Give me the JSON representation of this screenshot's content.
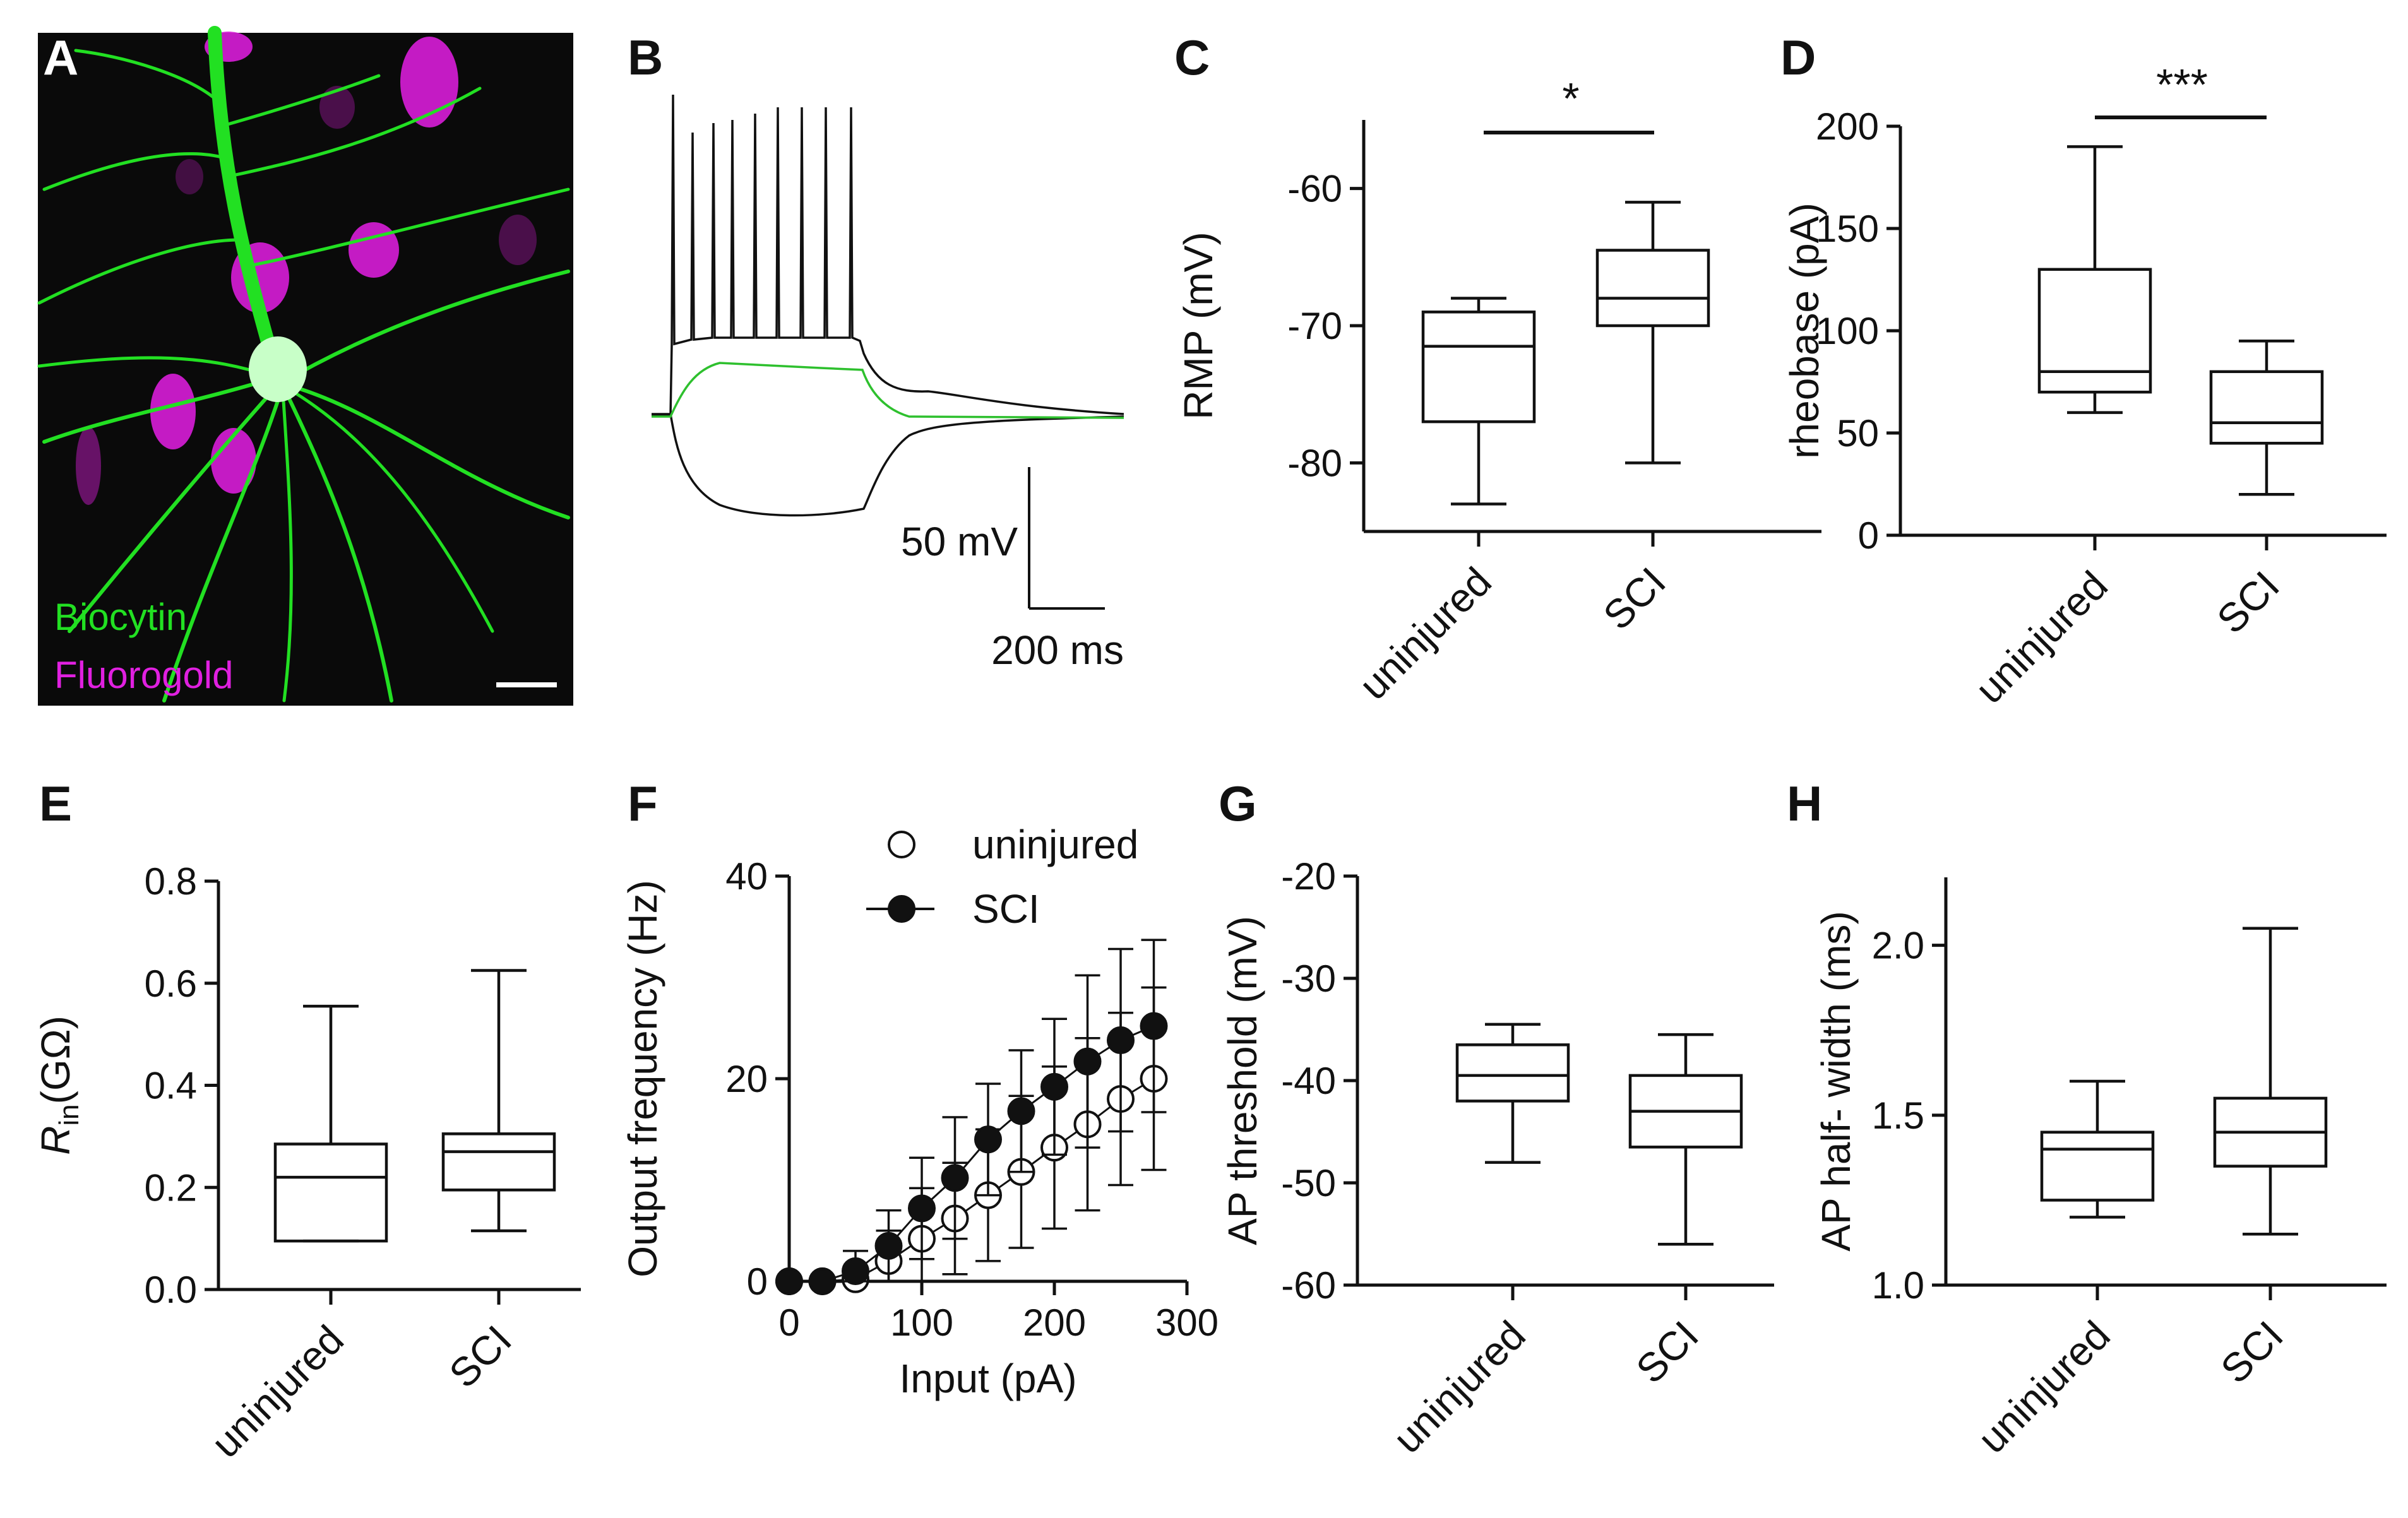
{
  "panels": {
    "A": {
      "label": "A",
      "legend": [
        "Biocytin",
        "Fluorogold"
      ],
      "colors": {
        "biocytin": "#22e022",
        "fluorogold": "#e020e0"
      }
    },
    "B": {
      "label": "B",
      "scalebar_v": "50 mV",
      "scalebar_h": "200 ms"
    },
    "C": {
      "label": "C",
      "significance": "*"
    },
    "D": {
      "label": "D",
      "significance": "***"
    },
    "E": {
      "label": "E"
    },
    "F": {
      "label": "F"
    },
    "G": {
      "label": "G"
    },
    "H": {
      "label": "H"
    }
  },
  "chart_data": [
    {
      "panel": "C",
      "type": "box",
      "ylabel": "RMP (mV)",
      "ylim": [
        -85,
        -55
      ],
      "yticks": [
        -80,
        -70,
        -60
      ],
      "categories": [
        "uninjured",
        "SCI"
      ],
      "boxes": [
        {
          "min": -83,
          "q1": -77,
          "median": -71.5,
          "q3": -69,
          "max": -68
        },
        {
          "min": -80,
          "q1": -70,
          "median": -68,
          "q3": -64.5,
          "max": -61
        }
      ]
    },
    {
      "panel": "D",
      "type": "box",
      "ylabel": "rheobase (pA)",
      "ylim": [
        0,
        200
      ],
      "yticks": [
        0,
        50,
        100,
        150,
        200
      ],
      "categories": [
        "uninjured",
        "SCI"
      ],
      "boxes": [
        {
          "min": 60,
          "q1": 70,
          "median": 80,
          "q3": 130,
          "max": 190
        },
        {
          "min": 20,
          "q1": 45,
          "median": 55,
          "q3": 80,
          "max": 95
        }
      ]
    },
    {
      "panel": "E",
      "type": "box",
      "ylabel": "R",
      "ylabel_sub": "in",
      "ylabel_unit": "(GΩ)",
      "ylim": [
        0,
        0.8
      ],
      "yticks": [
        "0.0",
        "0.2",
        "0.4",
        "0.6",
        "0.8"
      ],
      "categories": [
        "uninjured",
        "SCI"
      ],
      "boxes": [
        {
          "min": 0.095,
          "q1": 0.095,
          "median": 0.22,
          "q3": 0.285,
          "max": 0.555
        },
        {
          "min": 0.115,
          "q1": 0.195,
          "median": 0.27,
          "q3": 0.305,
          "max": 0.625
        }
      ]
    },
    {
      "panel": "F",
      "type": "line",
      "xlabel": "Input (pA)",
      "ylabel": "Output frequency (Hz)",
      "xlim": [
        0,
        300
      ],
      "ylim": [
        0,
        40
      ],
      "xticks": [
        0,
        100,
        200,
        300
      ],
      "yticks": [
        0,
        20,
        40
      ],
      "x": [
        0,
        25,
        50,
        75,
        100,
        125,
        150,
        175,
        200,
        225,
        250,
        275
      ],
      "series": [
        {
          "name": "uninjured",
          "marker": "open",
          "values": [
            0,
            0,
            0.2,
            2,
            4.2,
            6.2,
            8.5,
            10.8,
            13.2,
            15.5,
            18,
            20
          ],
          "errors": [
            0,
            0,
            0.5,
            3,
            5,
            5.5,
            6.5,
            7.5,
            8,
            8.5,
            8.5,
            9
          ]
        },
        {
          "name": "SCI",
          "marker": "filled",
          "values": [
            0,
            0,
            1,
            3.5,
            7.2,
            10.2,
            14,
            16.8,
            19.2,
            21.7,
            23.8,
            25.2
          ],
          "errors": [
            0,
            0,
            2,
            3.5,
            5,
            6,
            5.5,
            6,
            6.7,
            8.5,
            9,
            8.5
          ]
        }
      ]
    },
    {
      "panel": "G",
      "type": "box",
      "ylabel": "AP threshold (mV)",
      "ylim": [
        -60,
        -20
      ],
      "yticks": [
        -60,
        -50,
        -40,
        -30,
        -20
      ],
      "categories": [
        "uninjured",
        "SCI"
      ],
      "boxes": [
        {
          "min": -48,
          "q1": -42,
          "median": -39.5,
          "q3": -36.5,
          "max": -34.5
        },
        {
          "min": -56,
          "q1": -46.5,
          "median": -43,
          "q3": -39.5,
          "max": -35.5
        }
      ]
    },
    {
      "panel": "H",
      "type": "box",
      "ylabel": "AP half- width (ms)",
      "ylim": [
        1.0,
        2.2
      ],
      "yticks": [
        "1.0",
        "1.5",
        "2.0"
      ],
      "categories": [
        "uninjured",
        "SCI"
      ],
      "boxes": [
        {
          "min": 1.2,
          "q1": 1.25,
          "median": 1.4,
          "q3": 1.45,
          "max": 1.6
        },
        {
          "min": 1.15,
          "q1": 1.35,
          "median": 1.45,
          "q3": 1.55,
          "max": 2.05
        }
      ]
    }
  ]
}
